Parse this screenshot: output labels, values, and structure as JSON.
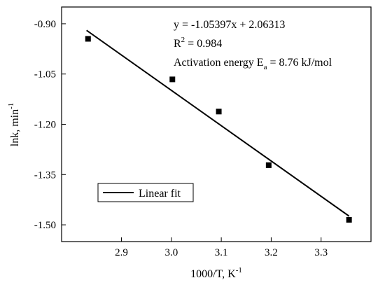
{
  "chart_data": {
    "type": "scatter",
    "x": [
      2.833,
      3.002,
      3.095,
      3.195,
      3.356
    ],
    "y": [
      -0.945,
      -1.066,
      -1.162,
      -1.322,
      -1.485
    ],
    "xlim": [
      2.78,
      3.4
    ],
    "ylim": [
      -1.55,
      -0.85
    ],
    "xticks": [
      "2.9",
      "3.0",
      "3.1",
      "3.2",
      "3.3"
    ],
    "xtick_values": [
      2.9,
      3.0,
      3.1,
      3.2,
      3.3
    ],
    "yticks": [
      "-0.90",
      "-1.05",
      "-1.20",
      "-1.35",
      "-1.50"
    ],
    "ytick_values": [
      -0.9,
      -1.05,
      -1.2,
      -1.35,
      -1.5
    ],
    "xlabel": "1000/T, K",
    "xlabel_sup": "-1",
    "ylabel": "lnk, min",
    "ylabel_sup": "-1",
    "fit": {
      "slope": -1.05397,
      "intercept": 2.06313,
      "x_range": [
        2.83,
        3.356
      ],
      "legend_label": "Linear fit"
    },
    "annotations": {
      "equation": "y = -1.05397x + 2.06313",
      "r2_prefix": "R",
      "r2_sup": "2",
      "r2_value": " = 0.984",
      "ea_prefix": "Activation energy E",
      "ea_sub": "a",
      "ea_value": " = 8.76 kJ/mol"
    },
    "legend_position": "bottom-left",
    "grid": false,
    "colors": {
      "marker": "#000000",
      "line": "#000000"
    }
  }
}
